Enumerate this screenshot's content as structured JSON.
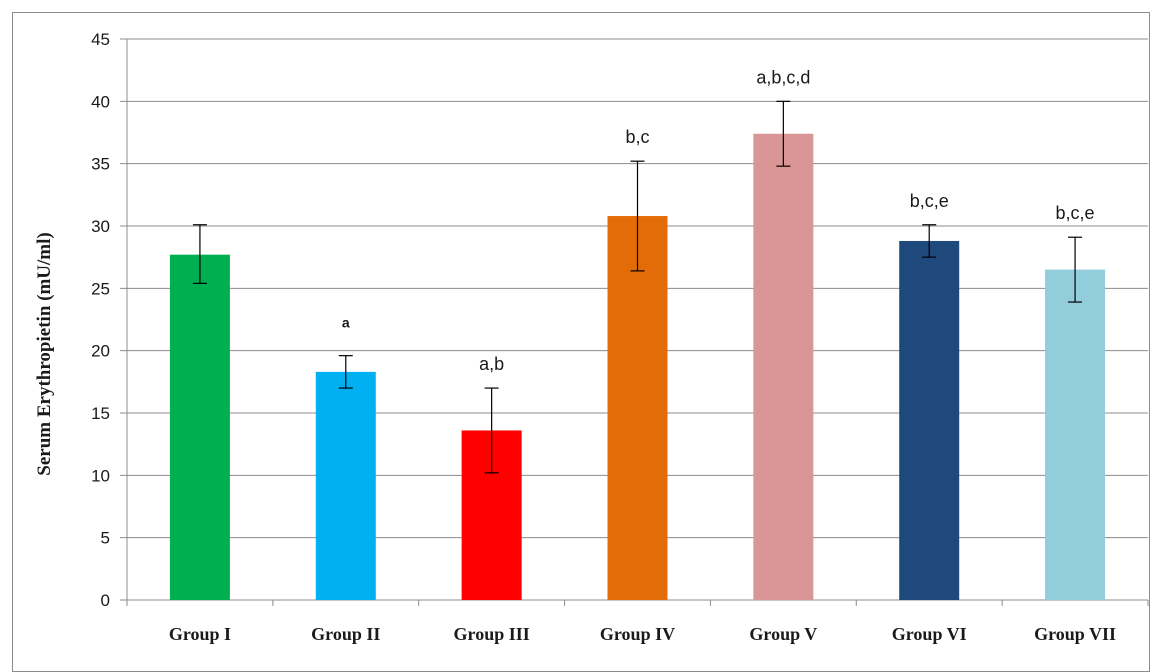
{
  "chart_data": {
    "type": "bar",
    "title": "",
    "xlabel": "",
    "ylabel": "Serum  Erythropietin (mU/ml)",
    "ylim": [
      0,
      45
    ],
    "yticks": [
      0,
      5,
      10,
      15,
      20,
      25,
      30,
      35,
      40,
      45
    ],
    "grid": true,
    "legend": "none",
    "categories": [
      "Group I",
      "Group II",
      "Group III",
      "Group IV",
      "Group V",
      "Group VI",
      "Group VII"
    ],
    "values": [
      27.7,
      18.3,
      13.6,
      30.8,
      37.4,
      28.8,
      26.5
    ],
    "error_low": [
      25.4,
      17.0,
      10.2,
      26.4,
      34.8,
      27.5,
      23.9
    ],
    "error_high": [
      30.1,
      19.6,
      17.0,
      35.2,
      40.0,
      30.1,
      29.1
    ],
    "significance_labels": [
      "",
      "a",
      "a,b",
      "b,c",
      "a,b,c,d",
      "b,c,e",
      "b,c,e"
    ],
    "colors": [
      "#00b050",
      "#00b0f0",
      "#ff0000",
      "#e36c09",
      "#d99694",
      "#1f497d",
      "#92cddc"
    ]
  }
}
